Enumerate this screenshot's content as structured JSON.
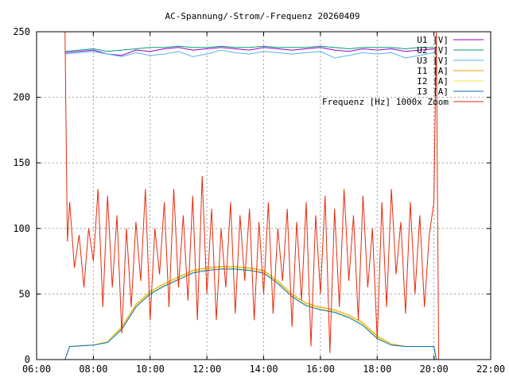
{
  "chart_data": {
    "type": "line",
    "title": "AC-Spannung/-Strom/-Frequenz 20260409",
    "xlabel": "",
    "ylabel": "",
    "xlim": [
      "06:00",
      "22:00"
    ],
    "ylim": [
      0,
      250
    ],
    "x_ticks": [
      "06:00",
      "08:00",
      "10:00",
      "12:00",
      "14:00",
      "16:00",
      "18:00",
      "20:00",
      "22:00"
    ],
    "y_ticks": [
      "0",
      "50",
      "100",
      "150",
      "200",
      "250"
    ],
    "grid": true,
    "legend_position": "top-right",
    "series": [
      {
        "name": "U1 [V]",
        "color": "#9400d3",
        "x": [
          "07:00",
          "07:30",
          "08:00",
          "08:30",
          "09:00",
          "09:30",
          "10:00",
          "10:30",
          "11:00",
          "11:30",
          "12:00",
          "12:30",
          "13:00",
          "13:30",
          "14:00",
          "14:30",
          "15:00",
          "15:30",
          "16:00",
          "16:30",
          "17:00",
          "17:30",
          "18:00",
          "18:30",
          "19:00",
          "19:30",
          "20:00"
        ],
        "values": [
          234,
          235,
          236,
          233,
          232,
          236,
          235,
          237,
          238,
          236,
          237,
          238,
          237,
          236,
          238,
          237,
          236,
          237,
          238,
          236,
          235,
          237,
          236,
          237,
          235,
          236,
          237
        ]
      },
      {
        "name": "U2 [V]",
        "color": "#009e73",
        "x": [
          "07:00",
          "07:30",
          "08:00",
          "08:30",
          "09:00",
          "09:30",
          "10:00",
          "10:30",
          "11:00",
          "11:30",
          "12:00",
          "12:30",
          "13:00",
          "13:30",
          "14:00",
          "14:30",
          "15:00",
          "15:30",
          "16:00",
          "16:30",
          "17:00",
          "17:30",
          "18:00",
          "18:30",
          "19:00",
          "19:30",
          "20:00"
        ],
        "values": [
          235,
          236,
          237,
          235,
          236,
          237,
          238,
          238,
          239,
          238,
          238,
          239,
          238,
          238,
          239,
          238,
          238,
          238,
          239,
          238,
          237,
          238,
          238,
          238,
          237,
          238,
          238
        ]
      },
      {
        "name": "U3 [V]",
        "color": "#56b4e9",
        "x": [
          "07:00",
          "07:30",
          "08:00",
          "08:30",
          "09:00",
          "09:30",
          "10:00",
          "10:30",
          "11:00",
          "11:30",
          "12:00",
          "12:30",
          "13:00",
          "13:30",
          "14:00",
          "14:30",
          "15:00",
          "15:30",
          "16:00",
          "16:30",
          "17:00",
          "17:30",
          "18:00",
          "18:30",
          "19:00",
          "19:30",
          "20:00"
        ],
        "values": [
          233,
          234,
          235,
          233,
          231,
          234,
          232,
          233,
          235,
          231,
          233,
          236,
          234,
          233,
          235,
          234,
          233,
          234,
          235,
          230,
          232,
          234,
          233,
          234,
          230,
          232,
          234
        ]
      },
      {
        "name": "I1 [A]",
        "color": "#e69f00",
        "x": [
          "07:00",
          "07:10",
          "08:00",
          "08:30",
          "09:00",
          "09:30",
          "10:00",
          "10:30",
          "11:00",
          "11:30",
          "12:00",
          "12:30",
          "13:00",
          "13:30",
          "14:00",
          "14:30",
          "15:00",
          "15:30",
          "16:00",
          "16:30",
          "17:00",
          "17:30",
          "18:00",
          "18:30",
          "19:00",
          "19:30",
          "20:00",
          "20:05"
        ],
        "values": [
          0,
          10,
          11,
          14,
          25,
          42,
          52,
          58,
          63,
          68,
          70,
          71,
          71,
          70,
          68,
          60,
          50,
          43,
          40,
          38,
          34,
          28,
          18,
          12,
          10,
          10,
          10,
          0
        ]
      },
      {
        "name": "I2 [A]",
        "color": "#f0e442",
        "x": [
          "07:00",
          "07:10",
          "08:00",
          "08:30",
          "09:00",
          "09:30",
          "10:00",
          "10:30",
          "11:00",
          "11:30",
          "12:00",
          "12:30",
          "13:00",
          "13:30",
          "14:00",
          "14:30",
          "15:00",
          "15:30",
          "16:00",
          "16:30",
          "17:00",
          "17:30",
          "18:00",
          "18:30",
          "19:00",
          "19:30",
          "20:00",
          "20:05"
        ],
        "values": [
          0,
          10,
          11,
          14,
          24,
          41,
          51,
          57,
          62,
          67,
          69,
          70,
          70,
          69,
          67,
          59,
          49,
          42,
          39,
          37,
          33,
          27,
          17,
          11,
          10,
          10,
          10,
          0
        ]
      },
      {
        "name": "I3 [A]",
        "color": "#0072b2",
        "x": [
          "07:00",
          "07:10",
          "08:00",
          "08:30",
          "09:00",
          "09:30",
          "10:00",
          "10:30",
          "11:00",
          "11:30",
          "12:00",
          "12:30",
          "13:00",
          "13:30",
          "14:00",
          "14:30",
          "15:00",
          "15:30",
          "16:00",
          "16:30",
          "17:00",
          "17:30",
          "18:00",
          "18:30",
          "19:00",
          "19:30",
          "20:00",
          "20:05"
        ],
        "values": [
          0,
          10,
          11,
          13,
          23,
          40,
          50,
          56,
          61,
          66,
          68,
          69,
          69,
          68,
          66,
          58,
          48,
          41,
          38,
          36,
          32,
          26,
          16,
          11,
          10,
          10,
          10,
          0
        ]
      },
      {
        "name": "Frequenz [Hz] 1000x Zoom",
        "color": "#e52b0c",
        "x": [
          "07:00",
          "07:05",
          "07:10",
          "07:20",
          "07:30",
          "07:40",
          "07:50",
          "08:00",
          "08:10",
          "08:20",
          "08:30",
          "08:40",
          "08:50",
          "09:00",
          "09:10",
          "09:20",
          "09:30",
          "09:40",
          "09:50",
          "10:00",
          "10:10",
          "10:20",
          "10:30",
          "10:40",
          "10:50",
          "11:00",
          "11:10",
          "11:20",
          "11:30",
          "11:40",
          "11:50",
          "12:00",
          "12:10",
          "12:20",
          "12:30",
          "12:40",
          "12:50",
          "13:00",
          "13:10",
          "13:20",
          "13:30",
          "13:40",
          "13:50",
          "14:00",
          "14:10",
          "14:20",
          "14:30",
          "14:40",
          "14:50",
          "15:00",
          "15:10",
          "15:20",
          "15:30",
          "15:40",
          "15:50",
          "16:00",
          "16:10",
          "16:20",
          "16:30",
          "16:40",
          "16:50",
          "17:00",
          "17:10",
          "17:20",
          "17:30",
          "17:40",
          "17:50",
          "18:00",
          "18:10",
          "18:20",
          "18:30",
          "18:40",
          "18:50",
          "19:00",
          "19:10",
          "19:20",
          "19:30",
          "19:40",
          "19:50",
          "20:00",
          "20:05",
          "20:10"
        ],
        "values": [
          250,
          90,
          120,
          70,
          95,
          55,
          100,
          75,
          130,
          40,
          125,
          55,
          110,
          20,
          100,
          40,
          105,
          60,
          130,
          30,
          100,
          65,
          120,
          40,
          130,
          55,
          110,
          45,
          125,
          30,
          140,
          50,
          115,
          30,
          100,
          55,
          120,
          35,
          110,
          60,
          115,
          30,
          105,
          50,
          120,
          35,
          100,
          60,
          115,
          25,
          105,
          45,
          120,
          10,
          110,
          50,
          125,
          5,
          115,
          40,
          130,
          60,
          110,
          30,
          125,
          55,
          100,
          15,
          120,
          40,
          130,
          65,
          105,
          35,
          120,
          50,
          110,
          40,
          95,
          120,
          250,
          0
        ]
      }
    ]
  }
}
